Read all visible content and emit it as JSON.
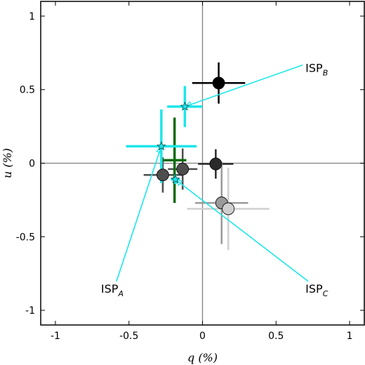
{
  "chart_data": {
    "type": "scatter",
    "title": "",
    "xlabel": "q (%)",
    "ylabel": "u (%)",
    "xlim": [
      -1.1,
      1.1
    ],
    "ylim": [
      -1.1,
      1.1
    ],
    "xticks": [
      -1,
      -0.5,
      0,
      0.5,
      1
    ],
    "yticks": [
      -1,
      -0.5,
      0,
      0.5,
      1
    ],
    "xtick_labels": [
      "-1",
      "-0.5",
      "0",
      "0.5",
      "1"
    ],
    "ytick_labels": [
      "-1",
      "-0.5",
      "0",
      "0.5",
      "1"
    ],
    "grid": false,
    "zero_lines": true,
    "colors": {
      "black": "#000000",
      "dark_gray": "#2a2a2a",
      "mid_dark_gray": "#4d4d4d",
      "mid_gray": "#9a9a9a",
      "light_gray": "#cfcfcf",
      "green": "#0b6b0b",
      "cyan": "#1de6ea",
      "axis": "#808080"
    },
    "points": [
      {
        "q": 0.11,
        "u": 0.545,
        "xerr": 0.18,
        "yerr": 0.14,
        "color": "#000000",
        "marker": "circle"
      },
      {
        "q": 0.09,
        "u": -0.005,
        "xerr": 0.12,
        "yerr": 0.1,
        "color": "#2a2a2a",
        "marker": "circle"
      },
      {
        "q": -0.135,
        "u": -0.04,
        "xerr": 0.1,
        "yerr": 0.14,
        "color": "#4d4d4d",
        "marker": "circle"
      },
      {
        "q": -0.27,
        "u": -0.08,
        "xerr": 0.13,
        "yerr": 0.12,
        "color": "#4d4d4d",
        "marker": "circle"
      },
      {
        "q": 0.13,
        "u": -0.27,
        "xerr": 0.18,
        "yerr": 0.28,
        "color": "#9a9a9a",
        "marker": "circle"
      },
      {
        "q": 0.175,
        "u": -0.31,
        "xerr": 0.28,
        "yerr": 0.28,
        "color": "#cfcfcf",
        "marker": "circle"
      },
      {
        "q": -0.19,
        "u": 0.02,
        "xerr": 0.08,
        "yerr": 0.29,
        "color": "#0b6b0b",
        "marker": "cross"
      },
      {
        "q": -0.12,
        "u": 0.385,
        "xerr": 0.12,
        "yerr": 0.14,
        "color": "#1de6ea",
        "marker": "star"
      },
      {
        "q": -0.28,
        "u": 0.115,
        "xerr": 0.24,
        "yerr": 0.25,
        "color": "#1de6ea",
        "marker": "star"
      },
      {
        "q": -0.185,
        "u": -0.11,
        "xerr": 0.03,
        "yerr": 0.03,
        "color": "#1de6ea",
        "marker": "star"
      }
    ],
    "annotations": [
      {
        "label": "ISP",
        "sub": "B",
        "text_q": 0.7,
        "text_u": 0.62,
        "arrow_to_q": -0.12,
        "arrow_to_u": 0.385
      },
      {
        "label": "ISP",
        "sub": "A",
        "text_q": -0.69,
        "text_u": -0.88,
        "arrow_to_q": -0.28,
        "arrow_to_u": 0.115
      },
      {
        "label": "ISP",
        "sub": "C",
        "text_q": 0.7,
        "text_u": -0.88,
        "arrow_to_q": -0.185,
        "arrow_to_u": -0.11
      }
    ]
  }
}
